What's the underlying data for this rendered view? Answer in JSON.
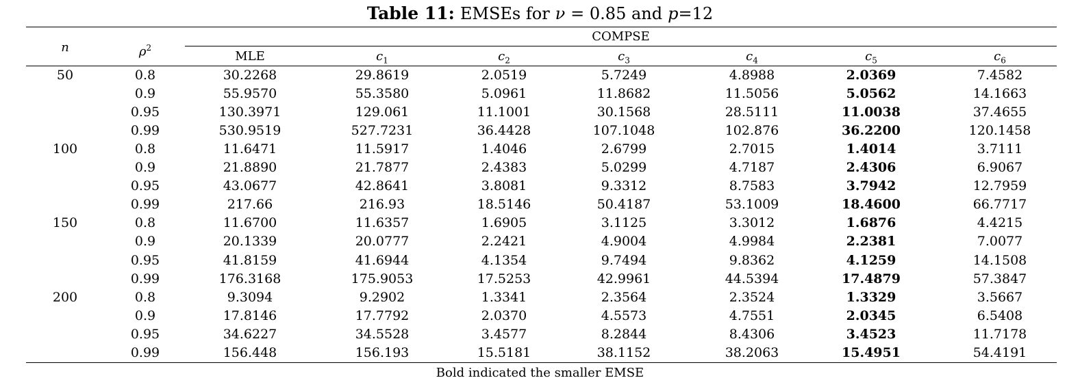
{
  "title": {
    "label": "Table 11:",
    "text_before_nu": "EMSEs for",
    "nu_symbol": "ν",
    "equals_value": "= 0.85 and",
    "p_symbol": "p",
    "p_value": "=12"
  },
  "header": {
    "n_label": "n",
    "rho_label": "ρ",
    "rho_sup": "2",
    "group_label": "COMPSE",
    "columns": [
      {
        "main": "MLE",
        "sub": ""
      },
      {
        "main": "c",
        "sub": "1"
      },
      {
        "main": "c",
        "sub": "2"
      },
      {
        "main": "c",
        "sub": "3"
      },
      {
        "main": "c",
        "sub": "4"
      },
      {
        "main": "c",
        "sub": "5"
      },
      {
        "main": "c",
        "sub": "6"
      }
    ]
  },
  "rows": [
    {
      "n": "50",
      "rho2": "0.8",
      "mle": "30.2268",
      "c1": "29.8619",
      "c2": "2.0519",
      "c3": "5.7249",
      "c4": "4.8988",
      "c5": "2.0369",
      "c6": "7.4582"
    },
    {
      "n": "",
      "rho2": "0.9",
      "mle": "55.9570",
      "c1": "55.3580",
      "c2": "5.0961",
      "c3": "11.8682",
      "c4": "11.5056",
      "c5": "5.0562",
      "c6": "14.1663"
    },
    {
      "n": "",
      "rho2": "0.95",
      "mle": "130.3971",
      "c1": "129.061",
      "c2": "11.1001",
      "c3": "30.1568",
      "c4": "28.5111",
      "c5": "11.0038",
      "c6": "37.4655"
    },
    {
      "n": "",
      "rho2": "0.99",
      "mle": "530.9519",
      "c1": "527.7231",
      "c2": "36.4428",
      "c3": "107.1048",
      "c4": "102.876",
      "c5": "36.2200",
      "c6": "120.1458"
    },
    {
      "n": "100",
      "rho2": "0.8",
      "mle": "11.6471",
      "c1": "11.5917",
      "c2": "1.4046",
      "c3": "2.6799",
      "c4": "2.7015",
      "c5": "1.4014",
      "c6": "3.7111"
    },
    {
      "n": "",
      "rho2": "0.9",
      "mle": "21.8890",
      "c1": "21.7877",
      "c2": "2.4383",
      "c3": "5.0299",
      "c4": "4.7187",
      "c5": "2.4306",
      "c6": "6.9067"
    },
    {
      "n": "",
      "rho2": "0.95",
      "mle": "43.0677",
      "c1": "42.8641",
      "c2": "3.8081",
      "c3": "9.3312",
      "c4": "8.7583",
      "c5": "3.7942",
      "c6": "12.7959"
    },
    {
      "n": "",
      "rho2": "0.99",
      "mle": "217.66",
      "c1": "216.93",
      "c2": "18.5146",
      "c3": "50.4187",
      "c4": "53.1009",
      "c5": "18.4600",
      "c6": "66.7717"
    },
    {
      "n": "150",
      "rho2": "0.8",
      "mle": "11.6700",
      "c1": "11.6357",
      "c2": "1.6905",
      "c3": "3.1125",
      "c4": "3.3012",
      "c5": "1.6876",
      "c6": "4.4215"
    },
    {
      "n": "",
      "rho2": "0.9",
      "mle": "20.1339",
      "c1": "20.0777",
      "c2": "2.2421",
      "c3": "4.9004",
      "c4": "4.9984",
      "c5": "2.2381",
      "c6": "7.0077"
    },
    {
      "n": "",
      "rho2": "0.95",
      "mle": "41.8159",
      "c1": "41.6944",
      "c2": "4.1354",
      "c3": "9.7494",
      "c4": "9.8362",
      "c5": "4.1259",
      "c6": "14.1508"
    },
    {
      "n": "",
      "rho2": "0.99",
      "mle": "176.3168",
      "c1": "175.9053",
      "c2": "17.5253",
      "c3": "42.9961",
      "c4": "44.5394",
      "c5": "17.4879",
      "c6": "57.3847"
    },
    {
      "n": "200",
      "rho2": "0.8",
      "mle": "9.3094",
      "c1": "9.2902",
      "c2": "1.3341",
      "c3": "2.3564",
      "c4": "2.3524",
      "c5": "1.3329",
      "c6": "3.5667"
    },
    {
      "n": "",
      "rho2": "0.9",
      "mle": "17.8146",
      "c1": "17.7792",
      "c2": "2.0370",
      "c3": "4.5573",
      "c4": "4.7551",
      "c5": "2.0345",
      "c6": "6.5408"
    },
    {
      "n": "",
      "rho2": "0.95",
      "mle": "34.6227",
      "c1": "34.5528",
      "c2": "3.4577",
      "c3": "8.2844",
      "c4": "8.4306",
      "c5": "3.4523",
      "c6": "11.7178"
    },
    {
      "n": "",
      "rho2": "0.99",
      "mle": "156.448",
      "c1": "156.193",
      "c2": "15.5181",
      "c3": "38.1152",
      "c4": "38.2063",
      "c5": "15.4951",
      "c6": "54.4191"
    }
  ],
  "bold_column": "c5",
  "footnote": "Bold indicated the smaller EMSE"
}
